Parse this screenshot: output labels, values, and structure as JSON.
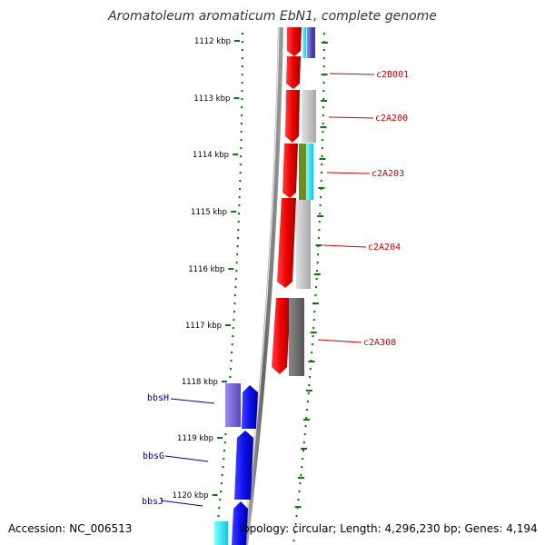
{
  "title": "Aromatoleum aromaticum EbN1, complete genome",
  "footer": {
    "accession": "Accession: NC_006513",
    "stats": "Topology: circular; Length: 4,296,230 bp; Genes: 4,194"
  },
  "ticks": [
    "1112 kbp",
    "1113 kbp",
    "1114 kbp",
    "1115 kbp",
    "1116 kbp",
    "1117 kbp",
    "1118 kbp",
    "1119 kbp",
    "1120 kbp"
  ],
  "gene_labels_right": [
    "c2B001",
    "c2A200",
    "c2A203",
    "c2A204",
    "c2A308"
  ],
  "gene_labels_left": [
    "bbsH",
    "bbsG",
    "bbsJ"
  ],
  "colors": {
    "red": "#e00000",
    "blue": "#1010e0",
    "purple": "#6a5acd",
    "cyan": "#20e0f0",
    "gray": "#b8b8b8",
    "darkgray": "#6a6a6a",
    "olive": "#6b8e23",
    "tickgreen": "#0a7a0a"
  }
}
